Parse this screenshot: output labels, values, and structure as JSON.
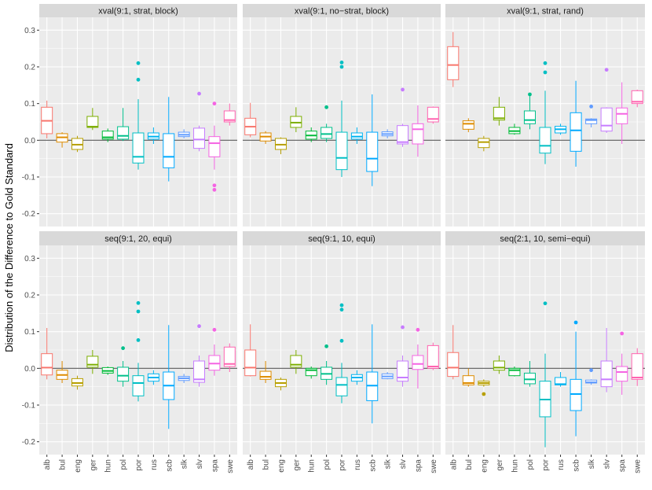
{
  "chart_data": {
    "type": "box",
    "ylabel": "Distribution of the Difference to Gold Standard",
    "xlabel": "",
    "ylim": [
      -0.235,
      0.335
    ],
    "yticks": [
      -0.2,
      -0.1,
      0.0,
      0.1,
      0.2,
      0.3
    ],
    "ytick_labels": [
      "-0.2",
      "-0.1",
      "0.0",
      "0.1",
      "0.2",
      "0.3"
    ],
    "reference_line": 0.0,
    "grid": true,
    "legend": "none",
    "categories": [
      "alb",
      "bul",
      "eng",
      "ger",
      "hun",
      "pol",
      "por",
      "rus",
      "scb",
      "slk",
      "slv",
      "spa",
      "swe"
    ],
    "colors": [
      "#F8766D",
      "#DE8C00",
      "#B79F00",
      "#7CAE00",
      "#00BA38",
      "#00C08B",
      "#00BFC4",
      "#00B4F0",
      "#00A9FF",
      "#619CFF",
      "#C77CFF",
      "#F564E3",
      "#FF64B0"
    ],
    "panels": [
      {
        "title": "xval(9:1, strat, block)",
        "boxes": [
          {
            "lw": 0.005,
            "q1": 0.018,
            "med": 0.053,
            "q3": 0.09,
            "uw": 0.108,
            "out": []
          },
          {
            "lw": -0.02,
            "q1": -0.005,
            "med": 0.008,
            "q3": 0.018,
            "uw": 0.022,
            "out": []
          },
          {
            "lw": -0.032,
            "q1": -0.025,
            "med": -0.012,
            "q3": 0.005,
            "uw": 0.012,
            "out": []
          },
          {
            "lw": 0.028,
            "q1": 0.035,
            "med": 0.037,
            "q3": 0.065,
            "uw": 0.088,
            "out": []
          },
          {
            "lw": -0.005,
            "q1": 0.003,
            "med": 0.008,
            "q3": 0.025,
            "uw": 0.032,
            "out": []
          },
          {
            "lw": -0.002,
            "q1": 0.003,
            "med": 0.012,
            "q3": 0.037,
            "uw": 0.088,
            "out": []
          },
          {
            "lw": -0.08,
            "q1": -0.062,
            "med": -0.045,
            "q3": 0.02,
            "uw": 0.112,
            "out": [
              0.21,
              0.165
            ]
          },
          {
            "lw": -0.01,
            "q1": 0.003,
            "med": 0.01,
            "q3": 0.02,
            "uw": 0.035,
            "out": []
          },
          {
            "lw": -0.112,
            "q1": -0.075,
            "med": -0.045,
            "q3": 0.018,
            "uw": 0.118,
            "out": []
          },
          {
            "lw": 0.005,
            "q1": 0.01,
            "med": 0.015,
            "q3": 0.022,
            "uw": 0.03,
            "out": []
          },
          {
            "lw": -0.03,
            "q1": -0.022,
            "med": 0.002,
            "q3": 0.033,
            "uw": 0.04,
            "out": [
              0.127
            ]
          },
          {
            "lw": -0.08,
            "q1": -0.045,
            "med": -0.008,
            "q3": 0.01,
            "uw": 0.04,
            "out": [
              0.1,
              -0.123,
              -0.135
            ]
          },
          {
            "lw": 0.04,
            "q1": 0.05,
            "med": 0.055,
            "q3": 0.08,
            "uw": 0.1,
            "out": []
          }
        ]
      },
      {
        "title": "xval(9:1, no−strat, block)",
        "boxes": [
          {
            "lw": 0.008,
            "q1": 0.015,
            "med": 0.037,
            "q3": 0.06,
            "uw": 0.102,
            "out": []
          },
          {
            "lw": -0.01,
            "q1": -0.002,
            "med": 0.01,
            "q3": 0.02,
            "uw": 0.025,
            "out": []
          },
          {
            "lw": -0.038,
            "q1": -0.025,
            "med": -0.012,
            "q3": 0.005,
            "uw": 0.008,
            "out": []
          },
          {
            "lw": 0.022,
            "q1": 0.035,
            "med": 0.048,
            "q3": 0.065,
            "uw": 0.09,
            "out": []
          },
          {
            "lw": -0.005,
            "q1": 0.003,
            "med": 0.013,
            "q3": 0.025,
            "uw": 0.035,
            "out": []
          },
          {
            "lw": -0.005,
            "q1": 0.005,
            "med": 0.017,
            "q3": 0.035,
            "uw": 0.045,
            "out": [
              0.09
            ]
          },
          {
            "lw": -0.1,
            "q1": -0.08,
            "med": -0.048,
            "q3": 0.022,
            "uw": 0.108,
            "out": [
              0.212,
              0.2
            ]
          },
          {
            "lw": -0.01,
            "q1": 0.003,
            "med": 0.01,
            "q3": 0.02,
            "uw": 0.035,
            "out": []
          },
          {
            "lw": -0.125,
            "q1": -0.085,
            "med": -0.05,
            "q3": 0.022,
            "uw": 0.125,
            "out": []
          },
          {
            "lw": 0.005,
            "q1": 0.012,
            "med": 0.017,
            "q3": 0.023,
            "uw": 0.03,
            "out": []
          },
          {
            "lw": -0.018,
            "q1": -0.01,
            "med": -0.005,
            "q3": 0.04,
            "uw": 0.045,
            "out": [
              0.138
            ]
          },
          {
            "lw": -0.045,
            "q1": -0.01,
            "med": 0.03,
            "q3": 0.045,
            "uw": 0.095,
            "out": []
          },
          {
            "lw": 0.045,
            "q1": 0.05,
            "med": 0.058,
            "q3": 0.09,
            "uw": 0.092,
            "out": []
          }
        ]
      },
      {
        "title": "xval(9:1, strat, rand)",
        "boxes": [
          {
            "lw": 0.145,
            "q1": 0.165,
            "med": 0.205,
            "q3": 0.255,
            "uw": 0.295,
            "out": []
          },
          {
            "lw": 0.022,
            "q1": 0.03,
            "med": 0.045,
            "q3": 0.053,
            "uw": 0.06,
            "out": []
          },
          {
            "lw": -0.03,
            "q1": -0.02,
            "med": -0.005,
            "q3": 0.005,
            "uw": 0.012,
            "out": []
          },
          {
            "lw": 0.04,
            "q1": 0.055,
            "med": 0.06,
            "q3": 0.09,
            "uw": 0.118,
            "out": []
          },
          {
            "lw": 0.015,
            "q1": 0.018,
            "med": 0.025,
            "q3": 0.035,
            "uw": 0.045,
            "out": []
          },
          {
            "lw": 0.03,
            "q1": 0.045,
            "med": 0.055,
            "q3": 0.08,
            "uw": 0.12,
            "out": [
              0.125
            ]
          },
          {
            "lw": -0.065,
            "q1": -0.035,
            "med": -0.015,
            "q3": 0.035,
            "uw": 0.135,
            "out": [
              0.21,
              0.185
            ]
          },
          {
            "lw": 0.015,
            "q1": 0.02,
            "med": 0.03,
            "q3": 0.038,
            "uw": 0.045,
            "out": []
          },
          {
            "lw": -0.072,
            "q1": -0.03,
            "med": 0.027,
            "q3": 0.075,
            "uw": 0.162,
            "out": []
          },
          {
            "lw": 0.035,
            "q1": 0.045,
            "med": 0.055,
            "q3": 0.058,
            "uw": 0.06,
            "out": [
              0.092
            ]
          },
          {
            "lw": 0.02,
            "q1": 0.025,
            "med": 0.04,
            "q3": 0.088,
            "uw": 0.09,
            "out": [
              0.192
            ]
          },
          {
            "lw": -0.01,
            "q1": 0.045,
            "med": 0.072,
            "q3": 0.088,
            "uw": 0.158,
            "out": []
          },
          {
            "lw": 0.09,
            "q1": 0.1,
            "med": 0.105,
            "q3": 0.135,
            "uw": 0.138,
            "out": []
          }
        ]
      },
      {
        "title": "seq(9:1, 20, equi)",
        "boxes": [
          {
            "lw": -0.03,
            "q1": -0.018,
            "med": 0.002,
            "q3": 0.04,
            "uw": 0.11,
            "out": []
          },
          {
            "lw": -0.04,
            "q1": -0.03,
            "med": -0.018,
            "q3": -0.005,
            "uw": 0.02,
            "out": []
          },
          {
            "lw": -0.058,
            "q1": -0.048,
            "med": -0.04,
            "q3": -0.028,
            "uw": -0.02,
            "out": []
          },
          {
            "lw": -0.015,
            "q1": 0.003,
            "med": 0.01,
            "q3": 0.033,
            "uw": 0.05,
            "out": []
          },
          {
            "lw": -0.018,
            "q1": -0.013,
            "med": -0.007,
            "q3": 0.002,
            "uw": 0.005,
            "out": []
          },
          {
            "lw": -0.05,
            "q1": -0.035,
            "med": -0.02,
            "q3": 0.003,
            "uw": 0.02,
            "out": [
              0.055
            ]
          },
          {
            "lw": -0.09,
            "q1": -0.075,
            "med": -0.04,
            "q3": -0.02,
            "uw": 0.015,
            "out": [
              0.178,
              0.155,
              0.077
            ]
          },
          {
            "lw": -0.045,
            "q1": -0.035,
            "med": -0.025,
            "q3": -0.015,
            "uw": -0.005,
            "out": []
          },
          {
            "lw": -0.165,
            "q1": -0.085,
            "med": -0.047,
            "q3": -0.01,
            "uw": 0.118,
            "out": []
          },
          {
            "lw": -0.04,
            "q1": -0.033,
            "med": -0.027,
            "q3": -0.022,
            "uw": -0.015,
            "out": []
          },
          {
            "lw": -0.05,
            "q1": -0.038,
            "med": -0.03,
            "q3": 0.02,
            "uw": 0.035,
            "out": [
              0.115
            ]
          },
          {
            "lw": -0.02,
            "q1": -0.005,
            "med": 0.013,
            "q3": 0.035,
            "uw": 0.065,
            "out": [
              0.105
            ]
          },
          {
            "lw": -0.01,
            "q1": 0.005,
            "med": 0.012,
            "q3": 0.058,
            "uw": 0.068,
            "out": []
          }
        ]
      },
      {
        "title": "seq(9:1, 10, equi)",
        "boxes": [
          {
            "lw": -0.022,
            "q1": -0.02,
            "med": 0.002,
            "q3": 0.05,
            "uw": 0.12,
            "out": []
          },
          {
            "lw": -0.04,
            "q1": -0.03,
            "med": -0.023,
            "q3": -0.008,
            "uw": 0.02,
            "out": []
          },
          {
            "lw": -0.06,
            "q1": -0.05,
            "med": -0.04,
            "q3": -0.03,
            "uw": -0.025,
            "out": []
          },
          {
            "lw": -0.015,
            "q1": 0.003,
            "med": 0.01,
            "q3": 0.035,
            "uw": 0.05,
            "out": []
          },
          {
            "lw": -0.028,
            "q1": -0.02,
            "med": -0.005,
            "q3": 0.0,
            "uw": 0.005,
            "out": []
          },
          {
            "lw": -0.045,
            "q1": -0.03,
            "med": -0.015,
            "q3": 0.003,
            "uw": 0.02,
            "out": [
              0.06
            ]
          },
          {
            "lw": -0.095,
            "q1": -0.075,
            "med": -0.045,
            "q3": -0.025,
            "uw": 0.015,
            "out": [
              0.172,
              0.16,
              0.075
            ]
          },
          {
            "lw": -0.045,
            "q1": -0.035,
            "med": -0.025,
            "q3": -0.017,
            "uw": -0.005,
            "out": []
          },
          {
            "lw": -0.15,
            "q1": -0.088,
            "med": -0.047,
            "q3": -0.01,
            "uw": 0.12,
            "out": []
          },
          {
            "lw": -0.03,
            "q1": -0.028,
            "med": -0.022,
            "q3": -0.015,
            "uw": -0.01,
            "out": []
          },
          {
            "lw": -0.05,
            "q1": -0.035,
            "med": -0.025,
            "q3": 0.02,
            "uw": 0.035,
            "out": [
              0.112
            ]
          },
          {
            "lw": -0.055,
            "q1": -0.003,
            "med": 0.012,
            "q3": 0.035,
            "uw": 0.065,
            "out": [
              0.105
            ]
          },
          {
            "lw": -0.005,
            "q1": 0.0,
            "med": 0.005,
            "q3": 0.062,
            "uw": 0.07,
            "out": []
          }
        ]
      },
      {
        "title": "seq(2:1, 10, semi−equi)",
        "boxes": [
          {
            "lw": -0.03,
            "q1": -0.022,
            "med": 0.002,
            "q3": 0.043,
            "uw": 0.118,
            "out": []
          },
          {
            "lw": -0.05,
            "q1": -0.045,
            "med": -0.04,
            "q3": -0.02,
            "uw": 0.0,
            "out": []
          },
          {
            "lw": -0.05,
            "q1": -0.045,
            "med": -0.04,
            "q3": -0.035,
            "uw": -0.03,
            "out": [
              -0.07
            ]
          },
          {
            "lw": -0.015,
            "q1": -0.005,
            "med": 0.002,
            "q3": 0.02,
            "uw": 0.035,
            "out": []
          },
          {
            "lw": -0.022,
            "q1": -0.02,
            "med": -0.005,
            "q3": 0.0,
            "uw": 0.005,
            "out": []
          },
          {
            "lw": -0.05,
            "q1": -0.042,
            "med": -0.03,
            "q3": -0.013,
            "uw": 0.02,
            "out": []
          },
          {
            "lw": -0.215,
            "q1": -0.132,
            "med": -0.085,
            "q3": -0.035,
            "uw": 0.04,
            "out": [
              0.177
            ]
          },
          {
            "lw": -0.05,
            "q1": -0.045,
            "med": -0.043,
            "q3": -0.025,
            "uw": -0.01,
            "out": []
          },
          {
            "lw": -0.185,
            "q1": -0.115,
            "med": -0.07,
            "q3": -0.03,
            "uw": 0.1,
            "out": [
              0.125
            ]
          },
          {
            "lw": -0.045,
            "q1": -0.04,
            "med": -0.038,
            "q3": -0.032,
            "uw": -0.03,
            "out": [
              -0.005
            ]
          },
          {
            "lw": -0.065,
            "q1": -0.05,
            "med": -0.03,
            "q3": 0.02,
            "uw": 0.11,
            "out": []
          },
          {
            "lw": -0.072,
            "q1": -0.035,
            "med": -0.01,
            "q3": 0.005,
            "uw": 0.04,
            "out": [
              0.095
            ]
          },
          {
            "lw": -0.048,
            "q1": -0.03,
            "med": -0.025,
            "q3": 0.04,
            "uw": 0.055,
            "out": []
          }
        ]
      }
    ]
  }
}
